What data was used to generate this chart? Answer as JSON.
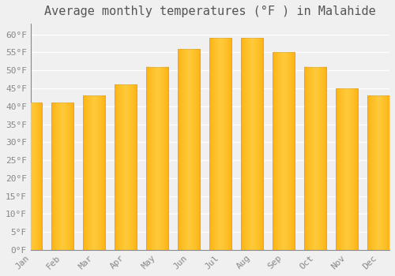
{
  "title": "Average monthly temperatures (°F ) in Malahide",
  "months": [
    "Jan",
    "Feb",
    "Mar",
    "Apr",
    "May",
    "Jun",
    "Jul",
    "Aug",
    "Sep",
    "Oct",
    "Nov",
    "Dec"
  ],
  "values": [
    41,
    41,
    43,
    46,
    51,
    56,
    59,
    59,
    55,
    51,
    45,
    43
  ],
  "bar_color": "#FFB300",
  "bar_edge_color": "#CC8800",
  "background_color": "#F0F0F0",
  "grid_color": "#FFFFFF",
  "text_color": "#888888",
  "title_color": "#555555",
  "ylim": [
    0,
    63
  ],
  "yticks": [
    0,
    5,
    10,
    15,
    20,
    25,
    30,
    35,
    40,
    45,
    50,
    55,
    60
  ],
  "ytick_labels": [
    "0°F",
    "5°F",
    "10°F",
    "15°F",
    "20°F",
    "25°F",
    "30°F",
    "35°F",
    "40°F",
    "45°F",
    "50°F",
    "55°F",
    "60°F"
  ],
  "title_fontsize": 11,
  "tick_fontsize": 8,
  "font_family": "monospace",
  "bar_width": 0.7,
  "figsize": [
    5.0,
    3.5
  ],
  "dpi": 100
}
